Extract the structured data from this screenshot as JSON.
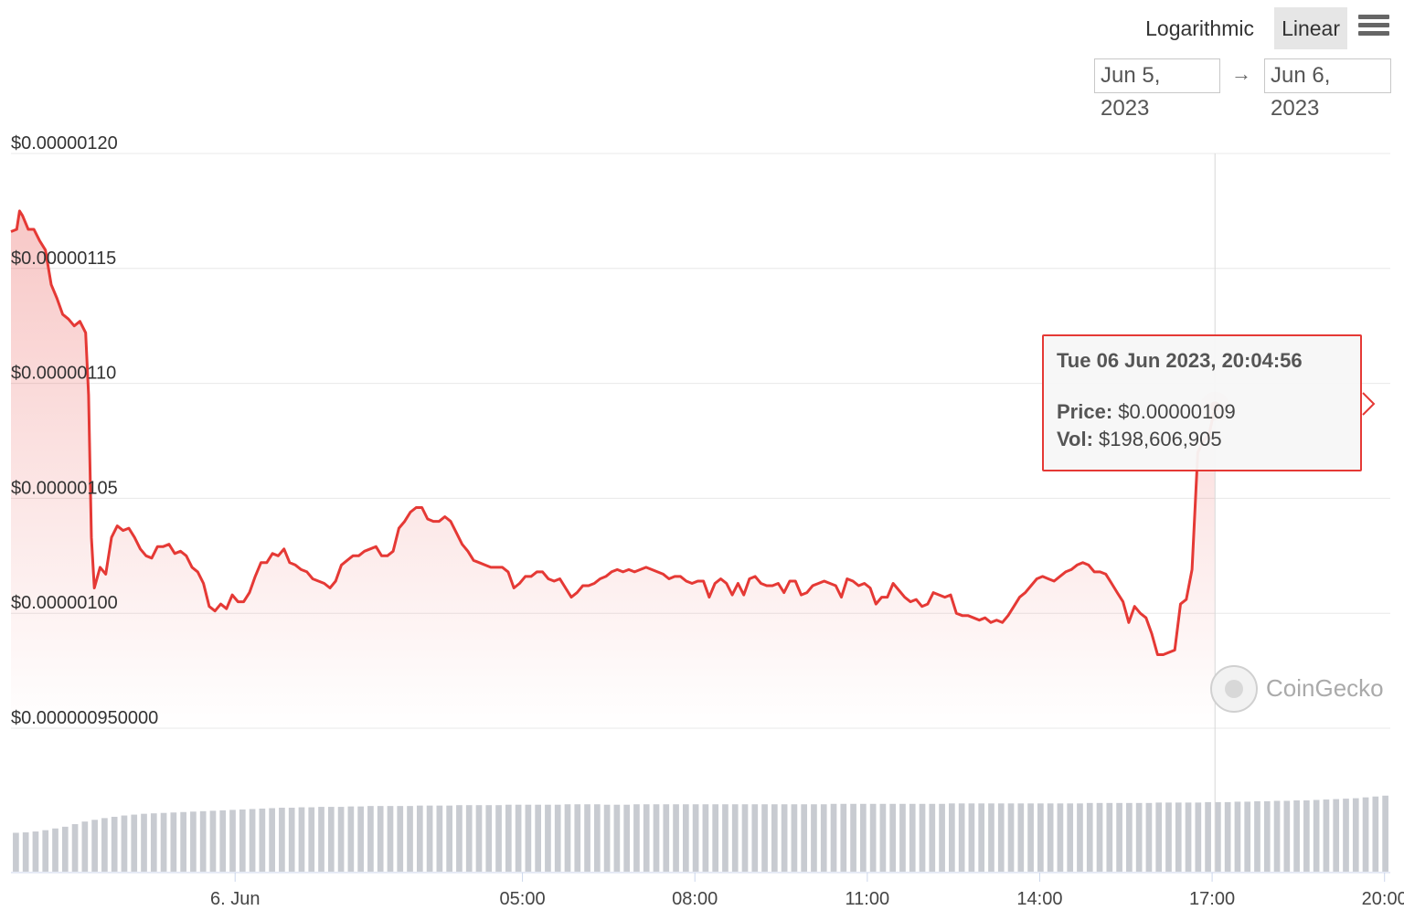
{
  "controls": {
    "scale_options": [
      "Logarithmic",
      "Linear"
    ],
    "selected_scale": "Linear",
    "menu_icon": "hamburger-menu-icon",
    "date_from": "Jun 5, 2023",
    "date_arrow": "→",
    "date_to": "Jun 6, 2023"
  },
  "tooltip": {
    "date": "Tue 06 Jun 2023, 20:04:56",
    "price_label": "Price:",
    "price_value": "$0.00000109",
    "vol_label": "Vol:",
    "vol_value": "$198,606,905"
  },
  "watermark": {
    "text": "CoinGecko",
    "icon": "coingecko-logo-icon"
  },
  "chart_data": {
    "type": "area",
    "line_color": "#e53935",
    "volume_color": "#c8cbd1",
    "y_ticks": [
      "$0.00000120",
      "$0.00000115",
      "$0.00000110",
      "$0.00000105",
      "$0.00000100",
      "$0.000000950000"
    ],
    "y_tick_values": [
      1.2e-06,
      1.15e-06,
      1.1e-06,
      1.05e-06,
      1e-06,
      9.5e-07
    ],
    "ylim": [
      9.5e-07,
      1.2e-06
    ],
    "x_ticks": [
      "6. Jun",
      "05:00",
      "08:00",
      "11:00",
      "14:00",
      "17:00",
      "20:00"
    ],
    "x_tick_hours": [
      0,
      5,
      8,
      11,
      14,
      17,
      20
    ],
    "xlim_hours": [
      -3.9,
      20.1
    ],
    "price_series": [
      [
        -3.9,
        1.166e-06
      ],
      [
        -3.8,
        1.167e-06
      ],
      [
        -3.75,
        1.175e-06
      ],
      [
        -3.7,
        1.173e-06
      ],
      [
        -3.6,
        1.167e-06
      ],
      [
        -3.5,
        1.167e-06
      ],
      [
        -3.4,
        1.162e-06
      ],
      [
        -3.3,
        1.158e-06
      ],
      [
        -3.2,
        1.143e-06
      ],
      [
        -3.1,
        1.137e-06
      ],
      [
        -3.0,
        1.13e-06
      ],
      [
        -2.9,
        1.128e-06
      ],
      [
        -2.8,
        1.125e-06
      ],
      [
        -2.7,
        1.127e-06
      ],
      [
        -2.6,
        1.122e-06
      ],
      [
        -2.55,
        1.095e-06
      ],
      [
        -2.5,
        1.033e-06
      ],
      [
        -2.45,
        1.011e-06
      ],
      [
        -2.35,
        1.02e-06
      ],
      [
        -2.25,
        1.017e-06
      ],
      [
        -2.15,
        1.033e-06
      ],
      [
        -2.05,
        1.038e-06
      ],
      [
        -1.95,
        1.036e-06
      ],
      [
        -1.85,
        1.037e-06
      ],
      [
        -1.75,
        1.033e-06
      ],
      [
        -1.65,
        1.028e-06
      ],
      [
        -1.55,
        1.025e-06
      ],
      [
        -1.45,
        1.024e-06
      ],
      [
        -1.35,
        1.029e-06
      ],
      [
        -1.25,
        1.029e-06
      ],
      [
        -1.15,
        1.03e-06
      ],
      [
        -1.05,
        1.026e-06
      ],
      [
        -0.95,
        1.027e-06
      ],
      [
        -0.85,
        1.025e-06
      ],
      [
        -0.75,
        1.02e-06
      ],
      [
        -0.65,
        1.018e-06
      ],
      [
        -0.55,
        1.013e-06
      ],
      [
        -0.45,
        1.003e-06
      ],
      [
        -0.35,
        1.001e-06
      ],
      [
        -0.25,
        1.004e-06
      ],
      [
        -0.15,
        1.002e-06
      ],
      [
        -0.05,
        1.008e-06
      ],
      [
        0.05,
        1.005e-06
      ],
      [
        0.15,
        1.005e-06
      ],
      [
        0.25,
        1.009e-06
      ],
      [
        0.35,
        1.016e-06
      ],
      [
        0.45,
        1.022e-06
      ],
      [
        0.55,
        1.022e-06
      ],
      [
        0.65,
        1.026e-06
      ],
      [
        0.75,
        1.025e-06
      ],
      [
        0.85,
        1.028e-06
      ],
      [
        0.95,
        1.022e-06
      ],
      [
        1.05,
        1.021e-06
      ],
      [
        1.15,
        1.019e-06
      ],
      [
        1.25,
        1.018e-06
      ],
      [
        1.35,
        1.015e-06
      ],
      [
        1.45,
        1.014e-06
      ],
      [
        1.55,
        1.013e-06
      ],
      [
        1.65,
        1.011e-06
      ],
      [
        1.75,
        1.014e-06
      ],
      [
        1.85,
        1.021e-06
      ],
      [
        1.95,
        1.023e-06
      ],
      [
        2.05,
        1.025e-06
      ],
      [
        2.15,
        1.025e-06
      ],
      [
        2.25,
        1.027e-06
      ],
      [
        2.35,
        1.028e-06
      ],
      [
        2.45,
        1.029e-06
      ],
      [
        2.55,
        1.025e-06
      ],
      [
        2.65,
        1.025e-06
      ],
      [
        2.75,
        1.027e-06
      ],
      [
        2.85,
        1.037e-06
      ],
      [
        2.95,
        1.04e-06
      ],
      [
        3.05,
        1.044e-06
      ],
      [
        3.15,
        1.046e-06
      ],
      [
        3.25,
        1.046e-06
      ],
      [
        3.35,
        1.041e-06
      ],
      [
        3.45,
        1.04e-06
      ],
      [
        3.55,
        1.04e-06
      ],
      [
        3.65,
        1.042e-06
      ],
      [
        3.75,
        1.04e-06
      ],
      [
        3.85,
        1.035e-06
      ],
      [
        3.95,
        1.03e-06
      ],
      [
        4.05,
        1.027e-06
      ],
      [
        4.15,
        1.023e-06
      ],
      [
        4.25,
        1.022e-06
      ],
      [
        4.35,
        1.021e-06
      ],
      [
        4.45,
        1.02e-06
      ],
      [
        4.55,
        1.02e-06
      ],
      [
        4.65,
        1.02e-06
      ],
      [
        4.75,
        1.018e-06
      ],
      [
        4.85,
        1.011e-06
      ],
      [
        4.95,
        1.013e-06
      ],
      [
        5.05,
        1.016e-06
      ],
      [
        5.15,
        1.016e-06
      ],
      [
        5.25,
        1.018e-06
      ],
      [
        5.35,
        1.018e-06
      ],
      [
        5.45,
        1.015e-06
      ],
      [
        5.55,
        1.014e-06
      ],
      [
        5.65,
        1.015e-06
      ],
      [
        5.75,
        1.011e-06
      ],
      [
        5.85,
        1.007e-06
      ],
      [
        5.95,
        1.009e-06
      ],
      [
        6.05,
        1.012e-06
      ],
      [
        6.15,
        1.012e-06
      ],
      [
        6.25,
        1.013e-06
      ],
      [
        6.35,
        1.015e-06
      ],
      [
        6.45,
        1.016e-06
      ],
      [
        6.55,
        1.018e-06
      ],
      [
        6.65,
        1.019e-06
      ],
      [
        6.75,
        1.018e-06
      ],
      [
        6.85,
        1.019e-06
      ],
      [
        6.95,
        1.018e-06
      ],
      [
        7.05,
        1.019e-06
      ],
      [
        7.15,
        1.02e-06
      ],
      [
        7.25,
        1.019e-06
      ],
      [
        7.35,
        1.018e-06
      ],
      [
        7.45,
        1.017e-06
      ],
      [
        7.55,
        1.015e-06
      ],
      [
        7.65,
        1.016e-06
      ],
      [
        7.75,
        1.016e-06
      ],
      [
        7.85,
        1.014e-06
      ],
      [
        7.95,
        1.013e-06
      ],
      [
        8.05,
        1.014e-06
      ],
      [
        8.15,
        1.014e-06
      ],
      [
        8.25,
        1.007e-06
      ],
      [
        8.35,
        1.013e-06
      ],
      [
        8.45,
        1.015e-06
      ],
      [
        8.55,
        1.013e-06
      ],
      [
        8.65,
        1.008e-06
      ],
      [
        8.75,
        1.013e-06
      ],
      [
        8.85,
        1.008e-06
      ],
      [
        8.95,
        1.015e-06
      ],
      [
        9.05,
        1.016e-06
      ],
      [
        9.15,
        1.013e-06
      ],
      [
        9.25,
        1.012e-06
      ],
      [
        9.35,
        1.012e-06
      ],
      [
        9.45,
        1.013e-06
      ],
      [
        9.55,
        1.009e-06
      ],
      [
        9.65,
        1.014e-06
      ],
      [
        9.75,
        1.014e-06
      ],
      [
        9.85,
        1.008e-06
      ],
      [
        9.95,
        1.009e-06
      ],
      [
        10.05,
        1.012e-06
      ],
      [
        10.15,
        1.013e-06
      ],
      [
        10.25,
        1.014e-06
      ],
      [
        10.35,
        1.013e-06
      ],
      [
        10.45,
        1.012e-06
      ],
      [
        10.55,
        1.007e-06
      ],
      [
        10.65,
        1.015e-06
      ],
      [
        10.75,
        1.014e-06
      ],
      [
        10.85,
        1.012e-06
      ],
      [
        10.95,
        1.013e-06
      ],
      [
        11.05,
        1.011e-06
      ],
      [
        11.15,
        1.004e-06
      ],
      [
        11.25,
        1.007e-06
      ],
      [
        11.35,
        1.007e-06
      ],
      [
        11.45,
        1.013e-06
      ],
      [
        11.55,
        1.01e-06
      ],
      [
        11.65,
        1.007e-06
      ],
      [
        11.75,
        1.005e-06
      ],
      [
        11.85,
        1.006e-06
      ],
      [
        11.95,
        1.003e-06
      ],
      [
        12.05,
        1.004e-06
      ],
      [
        12.15,
        1.009e-06
      ],
      [
        12.25,
        1.008e-06
      ],
      [
        12.35,
        1.007e-06
      ],
      [
        12.45,
        1.008e-06
      ],
      [
        12.55,
        1e-06
      ],
      [
        12.65,
        9.99e-07
      ],
      [
        12.75,
        9.99e-07
      ],
      [
        12.85,
        9.98e-07
      ],
      [
        12.95,
        9.97e-07
      ],
      [
        13.05,
        9.98e-07
      ],
      [
        13.15,
        9.96e-07
      ],
      [
        13.25,
        9.97e-07
      ],
      [
        13.35,
        9.96e-07
      ],
      [
        13.45,
        9.99e-07
      ],
      [
        13.55,
        1.003e-06
      ],
      [
        13.65,
        1.007e-06
      ],
      [
        13.75,
        1.009e-06
      ],
      [
        13.85,
        1.012e-06
      ],
      [
        13.95,
        1.015e-06
      ],
      [
        14.05,
        1.016e-06
      ],
      [
        14.15,
        1.015e-06
      ],
      [
        14.25,
        1.014e-06
      ],
      [
        14.35,
        1.016e-06
      ],
      [
        14.45,
        1.018e-06
      ],
      [
        14.55,
        1.019e-06
      ],
      [
        14.65,
        1.021e-06
      ],
      [
        14.75,
        1.022e-06
      ],
      [
        14.85,
        1.021e-06
      ],
      [
        14.95,
        1.018e-06
      ],
      [
        15.05,
        1.018e-06
      ],
      [
        15.15,
        1.017e-06
      ],
      [
        15.25,
        1.013e-06
      ],
      [
        15.35,
        1.009e-06
      ],
      [
        15.45,
        1.005e-06
      ],
      [
        15.55,
        9.96e-07
      ],
      [
        15.65,
        1.003e-06
      ],
      [
        15.75,
        1e-06
      ],
      [
        15.85,
        9.98e-07
      ],
      [
        15.95,
        9.91e-07
      ],
      [
        16.05,
        9.82e-07
      ],
      [
        16.15,
        9.82e-07
      ],
      [
        16.25,
        9.83e-07
      ],
      [
        16.35,
        9.84e-07
      ],
      [
        16.45,
        1.004e-06
      ],
      [
        16.55,
        1.006e-06
      ],
      [
        16.65,
        1.019e-06
      ],
      [
        16.75,
        1.07e-06
      ],
      [
        16.85,
        1.075e-06
      ],
      [
        16.95,
        1.078e-06
      ],
      [
        17.05,
        1.09e-06
      ]
    ],
    "volume_series": {
      "start_hour": -3.9,
      "end_hour": 20.1,
      "values_musd": [
        90,
        91,
        93,
        96,
        100,
        104,
        110,
        116,
        120,
        124,
        127,
        130,
        132,
        134,
        135,
        136,
        137,
        138,
        139,
        140,
        141,
        142,
        143,
        144,
        145,
        146,
        147,
        148,
        148,
        149,
        149,
        150,
        150,
        150,
        151,
        151,
        152,
        152,
        152,
        152,
        152,
        153,
        153,
        153,
        153,
        154,
        154,
        154,
        154,
        154,
        155,
        155,
        155,
        155,
        155,
        155,
        156,
        156,
        156,
        156,
        155,
        155,
        155,
        156,
        156,
        156,
        156,
        156,
        156,
        156,
        156,
        156,
        156,
        156,
        156,
        156,
        156,
        156,
        156,
        156,
        156,
        156,
        156,
        157,
        157,
        157,
        157,
        157,
        157,
        157,
        157,
        157,
        157,
        157,
        157,
        158,
        158,
        158,
        158,
        158,
        158,
        158,
        158,
        158,
        158,
        158,
        158,
        158,
        158,
        159,
        159,
        159,
        159,
        159,
        159,
        159,
        160,
        160,
        160,
        160,
        160,
        161,
        161,
        161,
        162,
        162,
        163,
        163,
        164,
        164,
        165,
        165,
        166,
        167,
        168,
        169,
        170,
        172,
        174,
        176
      ],
      "max_musd": 220
    }
  }
}
